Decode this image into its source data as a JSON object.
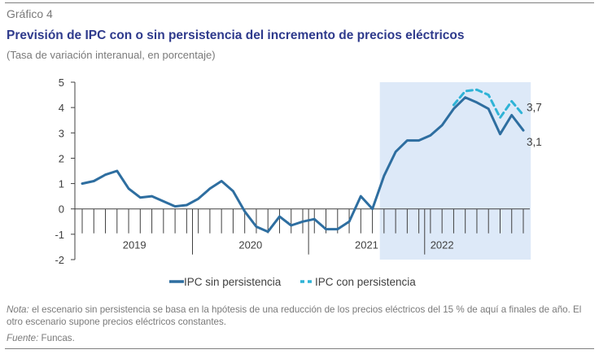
{
  "figure": {
    "label": "Gráfico 4",
    "title": "Previsión de IPC con o sin persistencia del incremento de precios eléctricos",
    "subtitle": "(Tasa de variación interanual, en porcentaje)",
    "note_prefix": "Nota:",
    "note_text": " el escenario sin persistencia se basa en la hpótesis de una reducción de los precios eléctricos del 15 % de aquí a finales de año. El otro escenario supone precios eléctricos constantes.",
    "source_prefix": "Fuente:",
    "source_text": " Funcas."
  },
  "chart_data": {
    "type": "line",
    "title": "",
    "xlabel": "",
    "ylabel": "",
    "ylim": [
      -2,
      5
    ],
    "yticks": [
      5,
      4,
      3,
      2,
      1,
      0,
      -1,
      -2
    ],
    "year_labels": [
      "2019",
      "2020",
      "2021",
      "2022"
    ],
    "year_start_index": [
      0,
      10,
      20,
      30
    ],
    "year_end_index": [
      9,
      19,
      29,
      32
    ],
    "forecast_start_index": 26,
    "forecast_shading_color": "#dde9f8",
    "grid": false,
    "legend_position": "bottom",
    "series": [
      {
        "name": "IPC sin persistencia",
        "color": "#2e6ea0",
        "style": "solid",
        "values": [
          1.0,
          1.1,
          1.35,
          1.5,
          0.8,
          0.45,
          0.5,
          0.3,
          0.1,
          0.15,
          0.4,
          0.8,
          1.1,
          0.7,
          -0.1,
          -0.7,
          -0.9,
          -0.3,
          -0.65,
          -0.5,
          -0.4,
          -0.8,
          -0.8,
          -0.5,
          0.5,
          0.0,
          1.3,
          2.25,
          2.7,
          2.7,
          2.9,
          3.3,
          3.95,
          4.4,
          4.2,
          3.95,
          2.95,
          3.7,
          3.1
        ]
      },
      {
        "name": "IPC con persistencia",
        "color": "#2fb3d6",
        "style": "dashed",
        "values": [
          null,
          null,
          null,
          null,
          null,
          null,
          null,
          null,
          null,
          null,
          null,
          null,
          null,
          null,
          null,
          null,
          null,
          null,
          null,
          null,
          null,
          null,
          null,
          null,
          null,
          null,
          null,
          null,
          null,
          null,
          null,
          null,
          4.1,
          4.65,
          4.7,
          4.5,
          3.6,
          4.25,
          3.7
        ]
      }
    ],
    "end_labels": [
      "3,7",
      "3,1"
    ]
  }
}
